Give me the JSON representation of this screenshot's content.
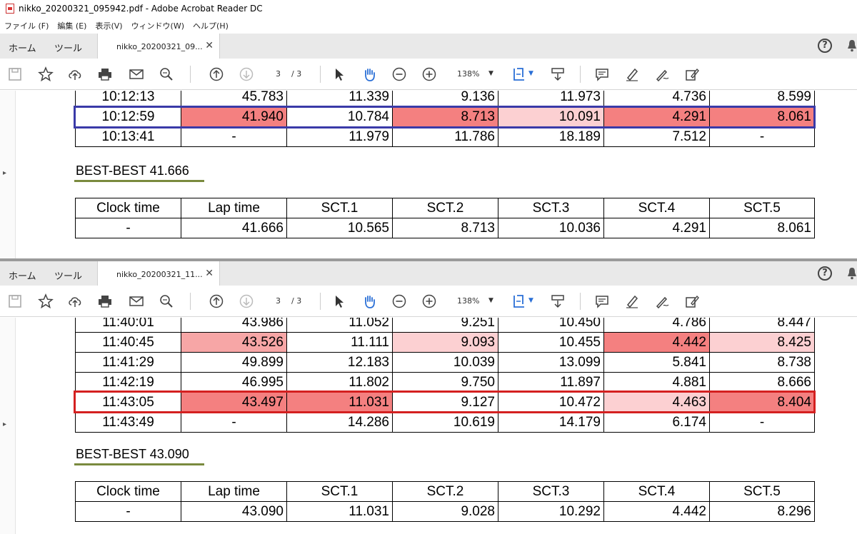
{
  "window": {
    "title": "nikko_20200321_095942.pdf - Adobe Acrobat Reader DC"
  },
  "menu": [
    "ファイル (F)",
    "編集 (E)",
    "表示(V)",
    "ウィンドウ(W)",
    "ヘルプ(H)"
  ],
  "pane1": {
    "nav_home": "ホーム",
    "nav_tools": "ツール",
    "doc_tab": "nikko_20200321_09...",
    "page_current": "3",
    "page_total": "/ 3",
    "zoom": "138%",
    "rows": [
      [
        "10:12:13",
        "45.783",
        "11.339",
        "9.136",
        "11.973",
        "4.736",
        "8.599"
      ],
      [
        "10:12:59",
        "41.940",
        "10.784",
        "8.713",
        "10.091",
        "4.291",
        "8.061"
      ],
      [
        "10:13:41",
        "-",
        "11.979",
        "11.786",
        "18.189",
        "7.512",
        "-"
      ]
    ],
    "best_label": "BEST-BEST 41.666",
    "summary_headers": [
      "Clock time",
      "Lap time",
      "SCT.1",
      "SCT.2",
      "SCT.3",
      "SCT.4",
      "SCT.5"
    ],
    "summary_values": [
      "-",
      "41.666",
      "10.565",
      "8.713",
      "10.036",
      "4.291",
      "8.061"
    ]
  },
  "pane2": {
    "nav_home": "ホーム",
    "nav_tools": "ツール",
    "doc_tab": "nikko_20200321_11...",
    "page_current": "3",
    "page_total": "/ 3",
    "zoom": "138%",
    "rows": [
      [
        "11:40:01",
        "43.986",
        "11.052",
        "9.251",
        "10.450",
        "4.786",
        "8.447"
      ],
      [
        "11:40:45",
        "43.526",
        "11.111",
        "9.093",
        "10.455",
        "4.442",
        "8.425"
      ],
      [
        "11:41:29",
        "49.899",
        "12.183",
        "10.039",
        "13.099",
        "5.841",
        "8.738"
      ],
      [
        "11:42:19",
        "46.995",
        "11.802",
        "9.750",
        "11.897",
        "4.881",
        "8.666"
      ],
      [
        "11:43:05",
        "43.497",
        "11.031",
        "9.127",
        "10.472",
        "4.463",
        "8.404"
      ],
      [
        "11:43:49",
        "-",
        "14.286",
        "10.619",
        "14.179",
        "6.174",
        "-"
      ]
    ],
    "best_label": "BEST-BEST 43.090",
    "summary_headers": [
      "Clock time",
      "Lap time",
      "SCT.1",
      "SCT.2",
      "SCT.3",
      "SCT.4",
      "SCT.5"
    ],
    "summary_values": [
      "-",
      "43.090",
      "11.031",
      "9.028",
      "10.292",
      "4.442",
      "8.296"
    ]
  },
  "colors": {
    "highlight_strong": "#f48080",
    "highlight_mid": "#f7a6a6",
    "highlight_light": "#fcd0d2",
    "box_blue": "#3a3aa8",
    "box_red": "#d42020",
    "underline_green": "#7a8a3e"
  }
}
